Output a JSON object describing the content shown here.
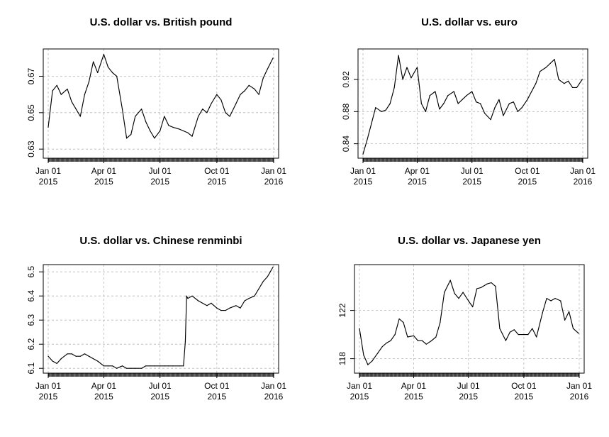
{
  "chart_data": [
    {
      "type": "line",
      "title": "U.S. dollar vs. British pound",
      "x_ticks": [
        "Jan 01\n2015",
        "Apr 01\n2015",
        "Jul 01\n2015",
        "Oct 01\n2015",
        "Jan 01\n2016"
      ],
      "y_ticks": [
        "0.63",
        "0.65",
        "0.67"
      ],
      "ylim": [
        0.625,
        0.685
      ],
      "grid": true,
      "x": [
        "2015-01-01",
        "2015-01-08",
        "2015-01-15",
        "2015-01-22",
        "2015-02-01",
        "2015-02-08",
        "2015-02-15",
        "2015-02-22",
        "2015-03-01",
        "2015-03-08",
        "2015-03-15",
        "2015-03-22",
        "2015-04-01",
        "2015-04-08",
        "2015-04-15",
        "2015-04-22",
        "2015-05-01",
        "2015-05-08",
        "2015-05-15",
        "2015-05-22",
        "2015-06-01",
        "2015-06-08",
        "2015-06-15",
        "2015-06-22",
        "2015-07-01",
        "2015-07-08",
        "2015-07-15",
        "2015-07-22",
        "2015-08-01",
        "2015-08-08",
        "2015-08-15",
        "2015-08-22",
        "2015-09-01",
        "2015-09-08",
        "2015-09-15",
        "2015-09-22",
        "2015-10-01",
        "2015-10-08",
        "2015-10-15",
        "2015-10-22",
        "2015-11-01",
        "2015-11-08",
        "2015-11-15",
        "2015-11-22",
        "2015-12-01",
        "2015-12-08",
        "2015-12-15",
        "2015-12-22",
        "2015-12-31"
      ],
      "values": [
        0.642,
        0.662,
        0.665,
        0.66,
        0.663,
        0.656,
        0.652,
        0.648,
        0.66,
        0.667,
        0.678,
        0.672,
        0.682,
        0.675,
        0.672,
        0.67,
        0.652,
        0.636,
        0.638,
        0.648,
        0.652,
        0.645,
        0.64,
        0.636,
        0.64,
        0.648,
        0.643,
        0.642,
        0.641,
        0.64,
        0.639,
        0.637,
        0.648,
        0.652,
        0.65,
        0.655,
        0.66,
        0.657,
        0.65,
        0.648,
        0.655,
        0.66,
        0.662,
        0.665,
        0.663,
        0.66,
        0.669,
        0.674,
        0.68
      ]
    },
    {
      "type": "line",
      "title": "U.S. dollar vs. euro",
      "x_ticks": [
        "Jan 01\n2015",
        "Apr 01\n2015",
        "Jul 01\n2015",
        "Oct 01\n2015",
        "Jan 01\n2016"
      ],
      "y_ticks": [
        "0.84",
        "0.88",
        "0.92"
      ],
      "ylim": [
        0.822,
        0.958
      ],
      "grid": true,
      "x": [
        "2015-01-01",
        "2015-01-08",
        "2015-01-15",
        "2015-01-22",
        "2015-02-01",
        "2015-02-08",
        "2015-02-15",
        "2015-02-22",
        "2015-03-01",
        "2015-03-08",
        "2015-03-15",
        "2015-03-22",
        "2015-04-01",
        "2015-04-08",
        "2015-04-15",
        "2015-04-22",
        "2015-05-01",
        "2015-05-08",
        "2015-05-15",
        "2015-05-22",
        "2015-06-01",
        "2015-06-08",
        "2015-06-15",
        "2015-06-22",
        "2015-07-01",
        "2015-07-08",
        "2015-07-15",
        "2015-07-22",
        "2015-08-01",
        "2015-08-08",
        "2015-08-15",
        "2015-08-22",
        "2015-09-01",
        "2015-09-08",
        "2015-09-15",
        "2015-09-22",
        "2015-10-01",
        "2015-10-08",
        "2015-10-15",
        "2015-10-22",
        "2015-11-01",
        "2015-11-08",
        "2015-11-15",
        "2015-11-22",
        "2015-12-01",
        "2015-12-08",
        "2015-12-15",
        "2015-12-22",
        "2015-12-31"
      ],
      "values": [
        0.827,
        0.845,
        0.865,
        0.885,
        0.88,
        0.882,
        0.89,
        0.91,
        0.95,
        0.92,
        0.935,
        0.922,
        0.935,
        0.89,
        0.88,
        0.9,
        0.905,
        0.883,
        0.89,
        0.9,
        0.905,
        0.89,
        0.895,
        0.9,
        0.905,
        0.892,
        0.89,
        0.878,
        0.87,
        0.885,
        0.895,
        0.875,
        0.89,
        0.892,
        0.88,
        0.885,
        0.895,
        0.905,
        0.915,
        0.93,
        0.935,
        0.94,
        0.945,
        0.92,
        0.915,
        0.918,
        0.91,
        0.91,
        0.92
      ]
    },
    {
      "type": "line",
      "title": "U.S. dollar vs. Chinese renminbi",
      "x_ticks": [
        "Jan 01\n2015",
        "Apr 01\n2015",
        "Jul 01\n2015",
        "Oct 01\n2015",
        "Jan 01\n2016"
      ],
      "y_ticks": [
        "6.1",
        "6.2",
        "6.3",
        "6.4",
        "6.5"
      ],
      "ylim": [
        6.08,
        6.53
      ],
      "grid": true,
      "x": [
        "2015-01-01",
        "2015-01-08",
        "2015-01-15",
        "2015-01-22",
        "2015-02-01",
        "2015-02-08",
        "2015-02-15",
        "2015-02-22",
        "2015-03-01",
        "2015-03-08",
        "2015-03-15",
        "2015-03-22",
        "2015-04-01",
        "2015-04-08",
        "2015-04-15",
        "2015-04-22",
        "2015-05-01",
        "2015-05-08",
        "2015-05-15",
        "2015-05-22",
        "2015-06-01",
        "2015-06-08",
        "2015-06-15",
        "2015-06-22",
        "2015-07-01",
        "2015-07-08",
        "2015-07-15",
        "2015-07-22",
        "2015-08-01",
        "2015-08-08",
        "2015-08-11",
        "2015-08-13",
        "2015-08-15",
        "2015-08-22",
        "2015-09-01",
        "2015-09-08",
        "2015-09-15",
        "2015-09-22",
        "2015-10-01",
        "2015-10-08",
        "2015-10-15",
        "2015-10-22",
        "2015-11-01",
        "2015-11-08",
        "2015-11-15",
        "2015-11-22",
        "2015-12-01",
        "2015-12-08",
        "2015-12-15",
        "2015-12-22",
        "2015-12-31"
      ],
      "values": [
        6.15,
        6.13,
        6.12,
        6.14,
        6.16,
        6.16,
        6.15,
        6.15,
        6.16,
        6.15,
        6.14,
        6.13,
        6.11,
        6.11,
        6.11,
        6.1,
        6.11,
        6.1,
        6.1,
        6.1,
        6.1,
        6.11,
        6.11,
        6.11,
        6.11,
        6.11,
        6.11,
        6.11,
        6.11,
        6.11,
        6.21,
        6.4,
        6.39,
        6.4,
        6.38,
        6.37,
        6.36,
        6.37,
        6.35,
        6.34,
        6.34,
        6.35,
        6.36,
        6.35,
        6.38,
        6.39,
        6.4,
        6.43,
        6.46,
        6.48,
        6.52
      ]
    },
    {
      "type": "line",
      "title": "U.S. dollar vs. Japanese yen",
      "x_ticks": [
        "Jan 01\n2015",
        "Apr 01\n2015",
        "Jul 01\n2015",
        "Oct 01\n2015",
        "Jan 01\n2016"
      ],
      "y_ticks": [
        "118",
        "122"
      ],
      "ylim": [
        116.8,
        125.8
      ],
      "grid": true,
      "x": [
        "2015-01-01",
        "2015-01-08",
        "2015-01-15",
        "2015-01-22",
        "2015-02-01",
        "2015-02-08",
        "2015-02-15",
        "2015-02-22",
        "2015-03-01",
        "2015-03-08",
        "2015-03-15",
        "2015-03-22",
        "2015-04-01",
        "2015-04-08",
        "2015-04-15",
        "2015-04-22",
        "2015-05-01",
        "2015-05-08",
        "2015-05-15",
        "2015-05-22",
        "2015-06-01",
        "2015-06-08",
        "2015-06-15",
        "2015-06-22",
        "2015-07-01",
        "2015-07-08",
        "2015-07-15",
        "2015-07-22",
        "2015-08-01",
        "2015-08-08",
        "2015-08-15",
        "2015-08-22",
        "2015-09-01",
        "2015-09-08",
        "2015-09-15",
        "2015-09-22",
        "2015-10-01",
        "2015-10-08",
        "2015-10-15",
        "2015-10-22",
        "2015-11-01",
        "2015-11-08",
        "2015-11-15",
        "2015-11-22",
        "2015-12-01",
        "2015-12-08",
        "2015-12-15",
        "2015-12-22",
        "2015-12-31"
      ],
      "values": [
        120.5,
        118.3,
        117.5,
        117.8,
        118.5,
        119.0,
        119.3,
        119.5,
        120.0,
        121.3,
        121.0,
        119.8,
        119.9,
        119.5,
        119.5,
        119.2,
        119.5,
        119.8,
        121.0,
        123.5,
        124.5,
        123.4,
        123.0,
        123.5,
        122.8,
        122.3,
        123.8,
        123.9,
        124.2,
        124.3,
        124.0,
        120.5,
        119.5,
        120.2,
        120.4,
        120.0,
        120.0,
        120.0,
        120.5,
        119.8,
        121.8,
        123.0,
        122.8,
        123.0,
        122.8,
        121.2,
        121.9,
        120.5,
        120.1
      ]
    }
  ]
}
